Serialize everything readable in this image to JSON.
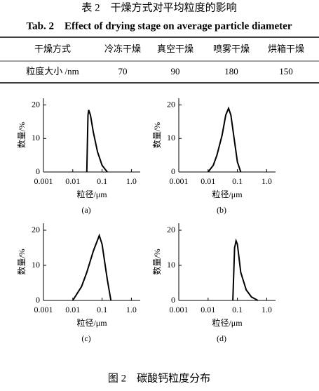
{
  "table_title": "表 2　干燥方式对平均粒度的影响",
  "table_title_en": "Tab. 2　Effect of drying stage on average particle diameter",
  "table": {
    "header": [
      "干燥方式",
      "冷冻干燥",
      "真空干燥",
      "喷雾干燥",
      "烘箱干燥"
    ],
    "rows": [
      [
        "粒度大小 /nm",
        "70",
        "90",
        "180",
        "150"
      ]
    ]
  },
  "chart_data": [
    {
      "type": "line",
      "label": "(a)",
      "xlabel": "粒径/μm",
      "ylabel": "数量/%",
      "log_x": true,
      "x": [
        0.03,
        0.033,
        0.035,
        0.04,
        0.05,
        0.07,
        0.1,
        0.15
      ],
      "values": [
        0,
        17,
        18.5,
        17,
        12,
        6,
        2,
        0
      ],
      "xlim": [
        0.001,
        2
      ],
      "ylim": [
        0,
        22
      ],
      "xticks": [
        0.001,
        0.01,
        0.1,
        {
          "value": 1,
          "label": "1.0"
        }
      ],
      "yticks": [
        0,
        10,
        20
      ],
      "color": "#000000"
    },
    {
      "type": "line",
      "label": "(b)",
      "xlabel": "粒径/μm",
      "ylabel": "数量/%",
      "log_x": true,
      "x": [
        0.01,
        0.015,
        0.02,
        0.03,
        0.04,
        0.05,
        0.06,
        0.08,
        0.1,
        0.13
      ],
      "values": [
        0,
        2,
        5,
        11,
        17,
        19,
        17,
        9,
        3,
        0
      ],
      "xlim": [
        0.001,
        2
      ],
      "ylim": [
        0,
        22
      ],
      "xticks": [
        0.001,
        0.01,
        0.1,
        {
          "value": 1,
          "label": "1.0"
        }
      ],
      "yticks": [
        0,
        10,
        20
      ],
      "color": "#000000"
    },
    {
      "type": "line",
      "label": "(c)",
      "xlabel": "粒径/μm",
      "ylabel": "数量/%",
      "log_x": true,
      "x": [
        0.01,
        0.02,
        0.03,
        0.05,
        0.08,
        0.1,
        0.15,
        0.2
      ],
      "values": [
        0,
        4,
        8,
        14,
        18.5,
        16,
        6,
        0
      ],
      "xlim": [
        0.001,
        2
      ],
      "ylim": [
        0,
        22
      ],
      "xticks": [
        0.001,
        0.01,
        0.1,
        {
          "value": 1,
          "label": "1.0"
        }
      ],
      "yticks": [
        0,
        10,
        20
      ],
      "color": "#000000"
    },
    {
      "type": "line",
      "label": "(d)",
      "xlabel": "粒径/μm",
      "ylabel": "数量/%",
      "log_x": true,
      "x": [
        0.07,
        0.08,
        0.09,
        0.1,
        0.13,
        0.2,
        0.3,
        0.5
      ],
      "values": [
        0,
        15,
        17,
        16,
        8,
        3,
        1,
        0
      ],
      "xlim": [
        0.001,
        2
      ],
      "ylim": [
        0,
        22
      ],
      "xticks": [
        0.001,
        0.01,
        0.1,
        {
          "value": 1,
          "label": "1.0"
        }
      ],
      "yticks": [
        0,
        10,
        20
      ],
      "color": "#000000"
    }
  ],
  "figure_caption": "图 2　碳酸钙粒度分布"
}
